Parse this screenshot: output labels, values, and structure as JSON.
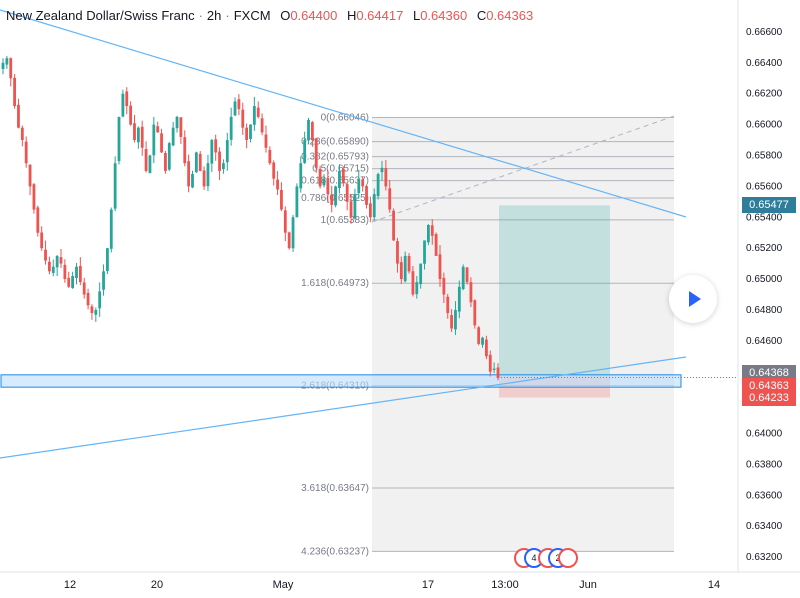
{
  "header": {
    "symbol": "New Zealand Dollar/Swiss Franc",
    "interval": "2h",
    "exchange": "FXCM",
    "o_label": "O",
    "o_value": "0.64400",
    "h_label": "H",
    "h_value": "0.64417",
    "l_label": "L",
    "l_value": "0.64360",
    "c_label": "C",
    "c_value": "0.64363"
  },
  "price_badges": {
    "upper_level": "0.65477",
    "last_gray": "0.64368",
    "current": "0.64363",
    "stop": "0.64233"
  },
  "colors": {
    "up": "#26a69a",
    "down": "#ef5350",
    "trendline": "#64b5f6",
    "badge_blue": "#2e7d9a",
    "badge_gray": "#787b86",
    "badge_red": "#ef5350"
  },
  "events": {
    "first_count": "4",
    "second_count": "2"
  },
  "chart_data": {
    "type": "candlestick",
    "y_axis": {
      "ticks": [
        "0.66600",
        "0.66400",
        "0.66200",
        "0.66000",
        "0.65800",
        "0.65600",
        "0.65400",
        "0.65200",
        "0.65000",
        "0.64800",
        "0.64600",
        "0.64400",
        "0.64200",
        "0.64000",
        "0.63800",
        "0.63600",
        "0.63400",
        "0.63200"
      ],
      "range": [
        0.6315,
        0.6666
      ]
    },
    "x_axis": {
      "ticks": [
        "12",
        "20",
        "May",
        "17",
        "13:00",
        "Jun",
        "14"
      ]
    },
    "fib_levels": [
      {
        "label": "0(0.66046)",
        "value": 0.66046
      },
      {
        "label": "0.236(0.65890)",
        "value": 0.6589
      },
      {
        "label": "0.382(0.65793)",
        "value": 0.65793
      },
      {
        "label": "0.5(0.65715)",
        "value": 0.65715
      },
      {
        "label": "0.618(0.65637)",
        "value": 0.65637
      },
      {
        "label": "0.786(0.65525)",
        "value": 0.65525
      },
      {
        "label": "1(0.65383)",
        "value": 0.65383
      },
      {
        "label": "1.618(0.64973)",
        "value": 0.64973
      },
      {
        "label": "2.618(0.64310)",
        "value": 0.6431
      },
      {
        "label": "3.618(0.63647)",
        "value": 0.63647
      },
      {
        "label": "4.236(0.63237)",
        "value": 0.63237
      }
    ],
    "position": {
      "entry": 0.64368,
      "target": 0.65477,
      "stop": 0.64233
    },
    "support_zone": [
      0.643,
      0.6438
    ],
    "close_path": [
      0.664,
      0.6643,
      0.663,
      0.6612,
      0.6598,
      0.659,
      0.6575,
      0.656,
      0.6545,
      0.653,
      0.652,
      0.6512,
      0.6505,
      0.6508,
      0.6515,
      0.651,
      0.65,
      0.6495,
      0.6502,
      0.6508,
      0.6498,
      0.649,
      0.6483,
      0.6478,
      0.648,
      0.6492,
      0.6505,
      0.652,
      0.6545,
      0.6575,
      0.6605,
      0.662,
      0.6612,
      0.66,
      0.659,
      0.6598,
      0.6585,
      0.657,
      0.658,
      0.66,
      0.6595,
      0.6582,
      0.657,
      0.6588,
      0.6598,
      0.6605,
      0.6592,
      0.6575,
      0.656,
      0.6568,
      0.6582,
      0.657,
      0.656,
      0.6575,
      0.659,
      0.6582,
      0.657,
      0.6575,
      0.659,
      0.6605,
      0.6615,
      0.661,
      0.6598,
      0.659,
      0.66,
      0.6612,
      0.6605,
      0.6595,
      0.6585,
      0.6575,
      0.6565,
      0.6558,
      0.6545,
      0.653,
      0.652,
      0.654,
      0.656,
      0.6575,
      0.659,
      0.6603,
      0.659,
      0.6572,
      0.656,
      0.6565,
      0.6555,
      0.6548,
      0.656,
      0.657,
      0.6562,
      0.655,
      0.654,
      0.6555,
      0.6565,
      0.656,
      0.6548,
      0.654,
      0.6555,
      0.6568,
      0.6572,
      0.656,
      0.6545,
      0.6525,
      0.651,
      0.65,
      0.6515,
      0.6505,
      0.649,
      0.6498,
      0.651,
      0.6525,
      0.6535,
      0.6528,
      0.6515,
      0.65,
      0.649,
      0.6478,
      0.6468,
      0.648,
      0.6495,
      0.6508,
      0.6498,
      0.6485,
      0.647,
      0.6458,
      0.6462,
      0.645,
      0.644,
      0.6442,
      0.6436
    ]
  }
}
